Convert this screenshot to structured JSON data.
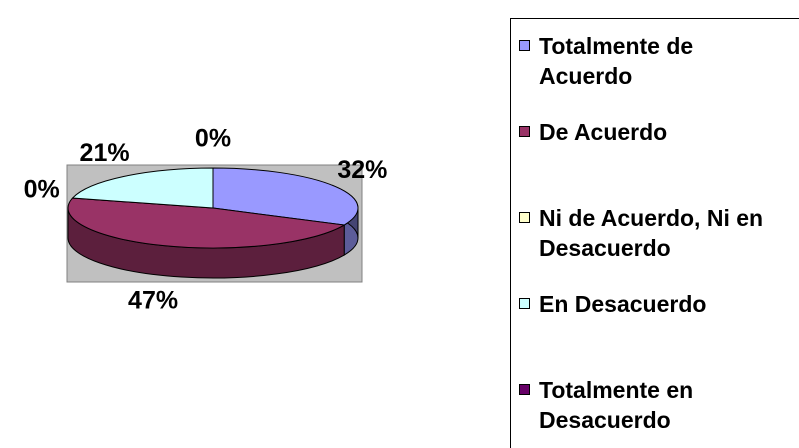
{
  "chart_data": {
    "type": "pie3d",
    "categories": [
      "Totalmente de Acuerdo",
      "De Acuerdo",
      "Ni de Acuerdo, Ni en Desacuerdo",
      "En Desacuerdo",
      "Totalmente en Desacuerdo"
    ],
    "values": [
      32,
      47,
      0,
      21,
      0
    ],
    "value_labels": [
      "32%",
      "47%",
      "0%",
      "21%",
      "0%"
    ],
    "colors": [
      "#9999ff",
      "#993366",
      "#ffffcc",
      "#ccffff",
      "#660066"
    ],
    "legend": "right"
  }
}
